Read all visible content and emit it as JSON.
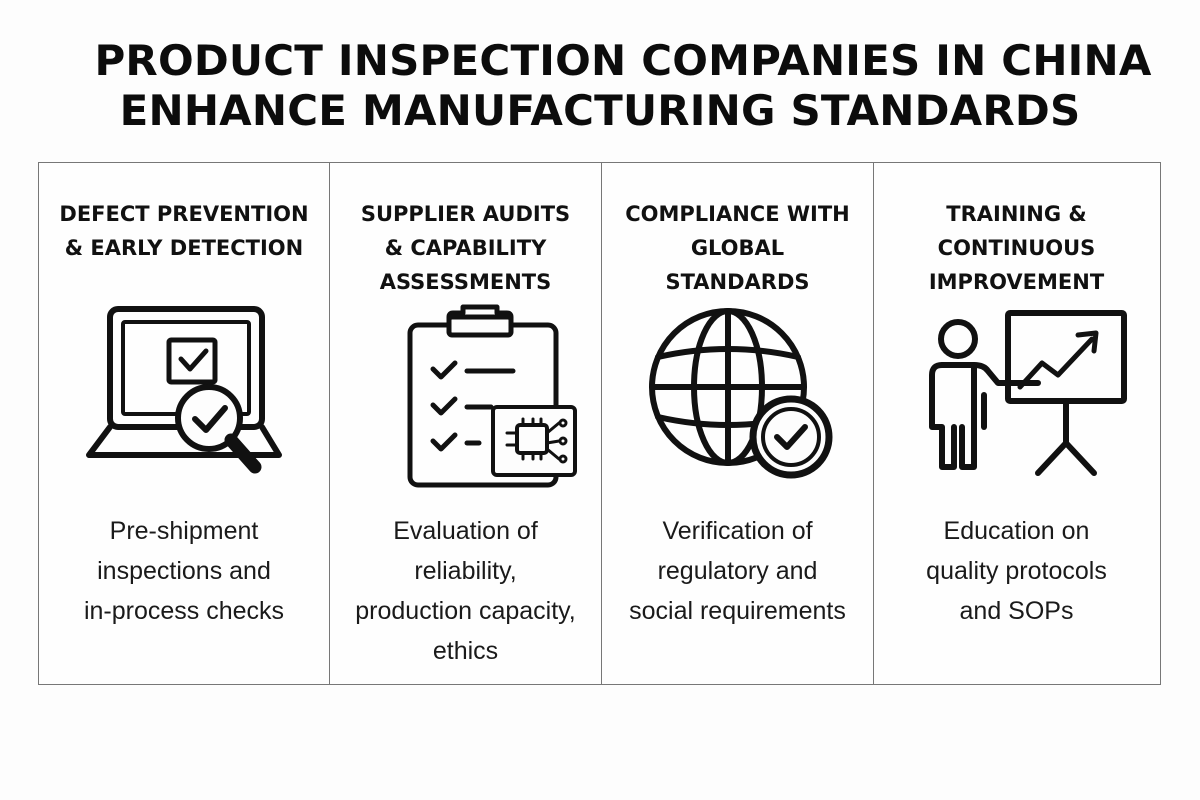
{
  "title": {
    "line1": "PRODUCT INSPECTION COMPANIES IN CHINA",
    "line2": "ENHANCE MANUFACTURING STANDARDS"
  },
  "columns": [
    {
      "heading": "DEFECT PREVENTION\n& EARLY DETECTION",
      "icon": "laptop-magnifier-check-icon",
      "description": "Pre-shipment\ninspections and\nin-process checks"
    },
    {
      "heading": "SUPPLIER AUDITS\n& CAPABILITY\nASSESSMENTS",
      "icon": "clipboard-checklist-chip-icon",
      "description": "Evaluation of\nreliability,\nproduction capacity,\nethics"
    },
    {
      "heading": "COMPLIANCE WITH\nGLOBAL\nSTANDARDS",
      "icon": "globe-check-icon",
      "description": "Verification of\nregulatory and\nsocial requirements"
    },
    {
      "heading": "TRAINING &\nCONTINUOUS\nIMPROVEMENT",
      "icon": "presenter-chart-icon",
      "description": "Education on\nquality protocols\nand SOPs"
    }
  ]
}
